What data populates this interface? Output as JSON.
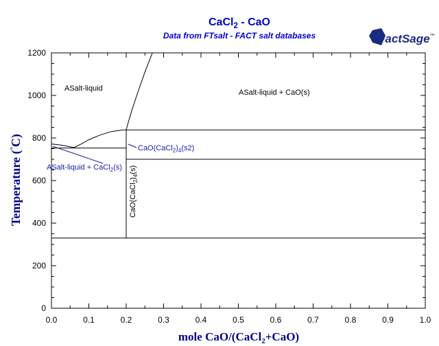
{
  "header": {
    "title_main": "CaCl",
    "title_sub": "2",
    "title_tail": " - CaO",
    "subtitle": "Data from FTsalt - FACT salt databases",
    "logo_text": "FactSage",
    "logo_tm": "™"
  },
  "colors": {
    "title": "#0000cc",
    "axis_label": "#00008b",
    "line": "#000000",
    "label_blue": "#1a1aa8"
  },
  "chart_data": {
    "type": "line",
    "title": "CaCl2 - CaO",
    "subtitle": "Data from FTsalt - FACT salt databases",
    "xlabel": "mole CaO/(CaCl2+CaO)",
    "ylabel": "Temperature (°C)",
    "xlim": [
      0,
      1
    ],
    "ylim": [
      0,
      1200
    ],
    "xticks": [
      0.0,
      0.1,
      0.2,
      0.3,
      0.4,
      0.5,
      0.6,
      0.7,
      0.8,
      0.9,
      1.0
    ],
    "xtick_labels": [
      "0.0",
      "0.1",
      "0.2",
      "0.3",
      "0.4",
      "0.5",
      "0.6",
      "0.7",
      "0.8",
      "0.9",
      "1.0"
    ],
    "yticks": [
      0,
      200,
      400,
      600,
      800,
      1000,
      1200
    ],
    "ytick_labels": [
      "0",
      "200",
      "400",
      "600",
      "800",
      "1000",
      "1200"
    ],
    "grid": false,
    "lines": [
      {
        "id": "liquidus-cacl2",
        "points": [
          [
            0.0,
            772
          ],
          [
            0.02,
            768
          ],
          [
            0.04,
            762
          ],
          [
            0.06,
            755
          ]
        ]
      },
      {
        "id": "liquidus-compound",
        "points": [
          [
            0.06,
            755
          ],
          [
            0.08,
            772
          ],
          [
            0.1,
            792
          ],
          [
            0.13,
            814
          ],
          [
            0.16,
            830
          ],
          [
            0.19,
            838
          ],
          [
            0.2,
            838
          ]
        ]
      },
      {
        "id": "liquidus-cao",
        "points": [
          [
            0.2,
            838
          ],
          [
            0.205,
            870
          ],
          [
            0.215,
            930
          ],
          [
            0.23,
            1010
          ],
          [
            0.25,
            1110
          ],
          [
            0.27,
            1200
          ]
        ]
      },
      {
        "id": "eutectic-line",
        "points": [
          [
            0.0,
            753
          ],
          [
            0.2,
            753
          ]
        ]
      },
      {
        "id": "peritectic-line",
        "points": [
          [
            0.2,
            838
          ],
          [
            1.0,
            838
          ]
        ]
      },
      {
        "id": "transition-line",
        "points": [
          [
            0.2,
            700
          ],
          [
            1.0,
            700
          ]
        ]
      },
      {
        "id": "compound-line",
        "points": [
          [
            0.2,
            330
          ],
          [
            0.2,
            838
          ]
        ]
      },
      {
        "id": "lower-line",
        "points": [
          [
            0.0,
            330
          ],
          [
            1.0,
            330
          ]
        ]
      }
    ],
    "annotations": {
      "liquid": "ASalt-liquid",
      "liquid_cao": "ASalt-liquid + CaO(s)",
      "s2_main": "CaO(CaCl",
      "s2_sub1": "2",
      "s2_mid": ")",
      "s2_sub2": "4",
      "s2_tail": "(s2)",
      "liq_cacl2_main": "ASalt-liquid + CaCl",
      "liq_cacl2_sub": "2",
      "liq_cacl2_tail": "(s)",
      "s_main": "CaO(CaCl",
      "s_sub1": "2",
      "s_mid": ")",
      "s_sub2": "4",
      "s_tail": "(s)"
    },
    "axis_labels": {
      "x_main": "mole CaO/(CaCl",
      "x_sub": "2",
      "x_tail": "+CaO)",
      "y_main": "Temperature (",
      "y_deg": "°",
      "y_tail": "C)"
    }
  }
}
